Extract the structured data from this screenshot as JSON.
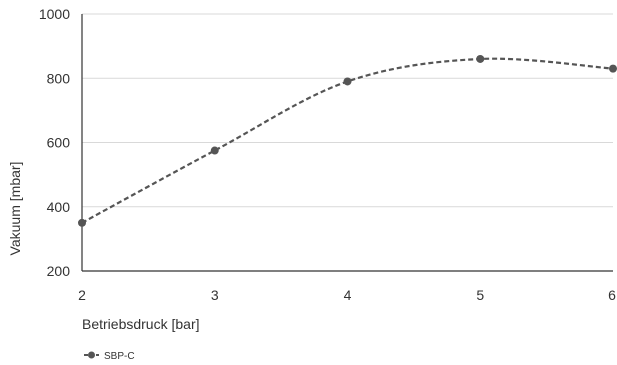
{
  "chart_data": {
    "type": "line",
    "x": [
      2,
      3,
      4,
      5,
      6
    ],
    "series": [
      {
        "name": "SBP-C",
        "values": [
          350,
          575,
          790,
          860,
          830
        ],
        "color": "#555555",
        "line_style": "dashed",
        "smooth": true,
        "marker": "circle"
      }
    ],
    "xlabel": "Betriebsdruck [bar]",
    "ylabel": "Vakuum [mbar]",
    "xlim": [
      2,
      6
    ],
    "ylim": [
      200,
      1000
    ],
    "xticks": [
      2,
      3,
      4,
      5,
      6
    ],
    "yticks": [
      200,
      400,
      600,
      800,
      1000
    ],
    "grid": "horizontal",
    "legend_position": "bottom-left",
    "colors": {
      "grid": "#d9d9d9",
      "axis": "#333333",
      "text": "#333333"
    }
  }
}
